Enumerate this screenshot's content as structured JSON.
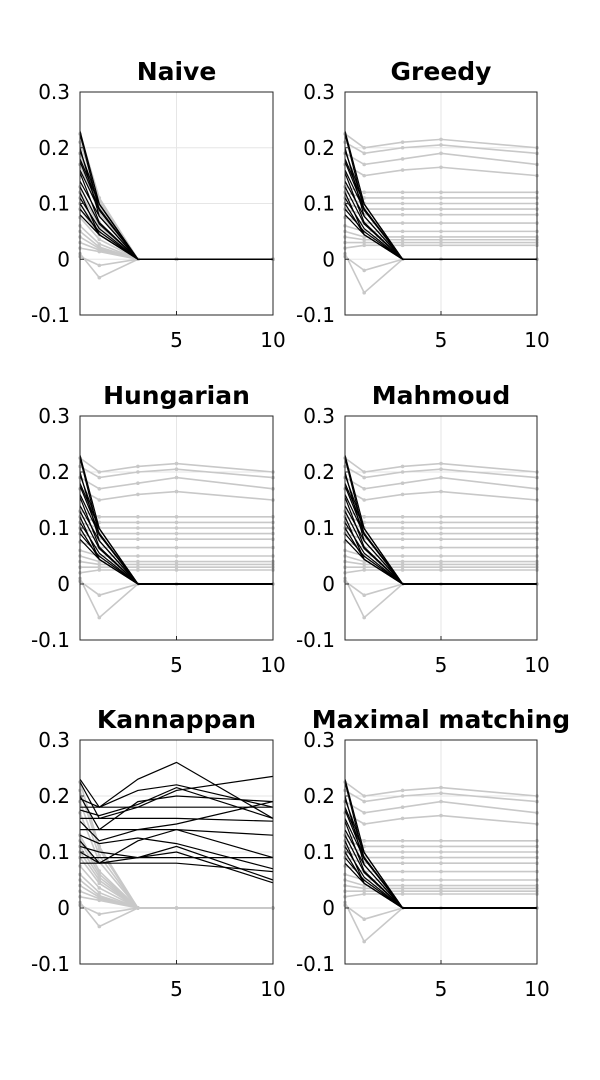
{
  "chart_data": [
    {
      "type": "line",
      "title": "Naive",
      "xlabel": "",
      "ylabel": "",
      "xlim": [
        0,
        10
      ],
      "ylim": [
        -0.1,
        0.3
      ],
      "xticks": [
        5,
        10
      ],
      "yticks": [
        -0.1,
        0,
        0.1,
        0.2,
        0.3
      ],
      "xtick_labels": [
        "5",
        "10"
      ],
      "ytick_labels": [
        "-0.1",
        "0",
        "0.1",
        "0.2",
        "0.3"
      ],
      "grid": true,
      "gray_convergence": "to_zero",
      "black_convergence": "to_zero"
    },
    {
      "type": "line",
      "title": "Greedy",
      "xlabel": "",
      "ylabel": "",
      "xlim": [
        0,
        10
      ],
      "ylim": [
        -0.1,
        0.3
      ],
      "xticks": [
        5,
        10
      ],
      "yticks": [
        -0.1,
        0,
        0.1,
        0.2,
        0.3
      ],
      "xtick_labels": [
        "5",
        "10"
      ],
      "ytick_labels": [
        "-0.1",
        "0",
        "0.1",
        "0.2",
        "0.3"
      ],
      "grid": true,
      "gray_convergence": "spread",
      "black_convergence": "to_zero"
    },
    {
      "type": "line",
      "title": "Hungarian",
      "xlabel": "",
      "ylabel": "",
      "xlim": [
        0,
        10
      ],
      "ylim": [
        -0.1,
        0.3
      ],
      "xticks": [
        5,
        10
      ],
      "yticks": [
        -0.1,
        0,
        0.1,
        0.2,
        0.3
      ],
      "xtick_labels": [
        "5",
        "10"
      ],
      "ytick_labels": [
        "-0.1",
        "0",
        "0.1",
        "0.2",
        "0.3"
      ],
      "grid": true,
      "gray_convergence": "spread",
      "black_convergence": "to_zero"
    },
    {
      "type": "line",
      "title": "Mahmoud",
      "xlabel": "",
      "ylabel": "",
      "xlim": [
        0,
        10
      ],
      "ylim": [
        -0.1,
        0.3
      ],
      "xticks": [
        5,
        10
      ],
      "yticks": [
        -0.1,
        0,
        0.1,
        0.2,
        0.3
      ],
      "xtick_labels": [
        "5",
        "10"
      ],
      "ytick_labels": [
        "-0.1",
        "0",
        "0.1",
        "0.2",
        "0.3"
      ],
      "grid": true,
      "gray_convergence": "spread",
      "black_convergence": "to_zero"
    },
    {
      "type": "line",
      "title": "Kannappan",
      "xlabel": "",
      "ylabel": "",
      "xlim": [
        0,
        10
      ],
      "ylim": [
        -0.1,
        0.3
      ],
      "xticks": [
        5,
        10
      ],
      "yticks": [
        -0.1,
        0,
        0.1,
        0.2,
        0.3
      ],
      "xtick_labels": [
        "5",
        "10"
      ],
      "ytick_labels": [
        "-0.1",
        "0",
        "0.1",
        "0.2",
        "0.3"
      ],
      "grid": true,
      "gray_convergence": "to_zero",
      "black_convergence": "spread"
    },
    {
      "type": "line",
      "title": "Maximal matching",
      "xlabel": "",
      "ylabel": "",
      "xlim": [
        0,
        10
      ],
      "ylim": [
        -0.1,
        0.3
      ],
      "xticks": [
        5,
        10
      ],
      "yticks": [
        -0.1,
        0,
        0.1,
        0.2,
        0.3
      ],
      "xtick_labels": [
        "5",
        "10"
      ],
      "ytick_labels": [
        "-0.1",
        "0",
        "0.1",
        "0.2",
        "0.3"
      ],
      "grid": true,
      "gray_convergence": "spread",
      "black_convergence": "to_zero"
    }
  ],
  "series_templates": {
    "x": [
      0,
      1,
      3,
      5,
      10
    ],
    "black_series": [
      {
        "name": "b1",
        "values": [
          0.23,
          0.18,
          0.23,
          0.26,
          0.16
        ]
      },
      {
        "name": "b2",
        "values": [
          0.225,
          0.16,
          0.18,
          0.21,
          0.235
        ]
      },
      {
        "name": "b3",
        "values": [
          0.2,
          0.14,
          0.19,
          0.2,
          0.19
        ]
      },
      {
        "name": "b4",
        "values": [
          0.195,
          0.18,
          0.21,
          0.22,
          0.18
        ]
      },
      {
        "name": "b5",
        "values": [
          0.18,
          0.18,
          0.18,
          0.18,
          0.18
        ]
      },
      {
        "name": "b6",
        "values": [
          0.175,
          0.165,
          0.185,
          0.215,
          0.16
        ]
      },
      {
        "name": "b7",
        "values": [
          0.16,
          0.16,
          0.16,
          0.16,
          0.155
        ]
      },
      {
        "name": "b8",
        "values": [
          0.155,
          0.12,
          0.14,
          0.15,
          0.19
        ]
      },
      {
        "name": "b9",
        "values": [
          0.14,
          0.14,
          0.14,
          0.14,
          0.13
        ]
      },
      {
        "name": "b10",
        "values": [
          0.13,
          0.115,
          0.125,
          0.115,
          0.07
        ]
      },
      {
        "name": "b11",
        "values": [
          0.12,
          0.08,
          0.12,
          0.14,
          0.09
        ]
      },
      {
        "name": "b12",
        "values": [
          0.11,
          0.1,
          0.09,
          0.11,
          0.05
        ]
      },
      {
        "name": "b13",
        "values": [
          0.1,
          0.08,
          0.09,
          0.1,
          0.045
        ]
      },
      {
        "name": "b14",
        "values": [
          0.09,
          0.09,
          0.09,
          0.09,
          0.09
        ]
      },
      {
        "name": "b15",
        "values": [
          0.08,
          0.08,
          0.08,
          0.08,
          0.065
        ]
      }
    ],
    "gray_series": [
      {
        "name": "g1",
        "values": [
          0.225,
          0.2,
          0.21,
          0.215,
          0.2
        ]
      },
      {
        "name": "g2",
        "values": [
          0.21,
          0.19,
          0.2,
          0.205,
          0.19
        ]
      },
      {
        "name": "g3",
        "values": [
          0.19,
          0.17,
          0.18,
          0.19,
          0.17
        ]
      },
      {
        "name": "g4",
        "values": [
          0.17,
          0.15,
          0.16,
          0.165,
          0.15
        ]
      },
      {
        "name": "g5",
        "values": [
          0.13,
          0.12,
          0.12,
          0.12,
          0.12
        ]
      },
      {
        "name": "g6",
        "values": [
          0.12,
          0.11,
          0.11,
          0.11,
          0.11
        ]
      },
      {
        "name": "g7",
        "values": [
          0.11,
          0.1,
          0.1,
          0.1,
          0.1
        ]
      },
      {
        "name": "g8",
        "values": [
          0.1,
          0.09,
          0.09,
          0.09,
          0.09
        ]
      },
      {
        "name": "g9",
        "values": [
          0.09,
          0.08,
          0.08,
          0.08,
          0.08
        ]
      },
      {
        "name": "g10",
        "values": [
          0.075,
          0.065,
          0.065,
          0.065,
          0.065
        ]
      },
      {
        "name": "g11",
        "values": [
          0.06,
          0.05,
          0.05,
          0.05,
          0.05
        ]
      },
      {
        "name": "g12",
        "values": [
          0.05,
          0.04,
          0.04,
          0.04,
          0.04
        ]
      },
      {
        "name": "g13",
        "values": [
          0.04,
          0.035,
          0.035,
          0.035,
          0.035
        ]
      },
      {
        "name": "g14",
        "values": [
          0.03,
          0.03,
          0.03,
          0.03,
          0.03
        ]
      },
      {
        "name": "g15",
        "values": [
          0.02,
          0.025,
          0.025,
          0.025,
          0.025
        ]
      },
      {
        "name": "g16",
        "values": [
          0.01,
          -0.06,
          0.0,
          0.0,
          0.0
        ]
      },
      {
        "name": "g17",
        "values": [
          0.005,
          -0.02,
          0.0,
          0.0,
          0.0
        ]
      }
    ]
  }
}
